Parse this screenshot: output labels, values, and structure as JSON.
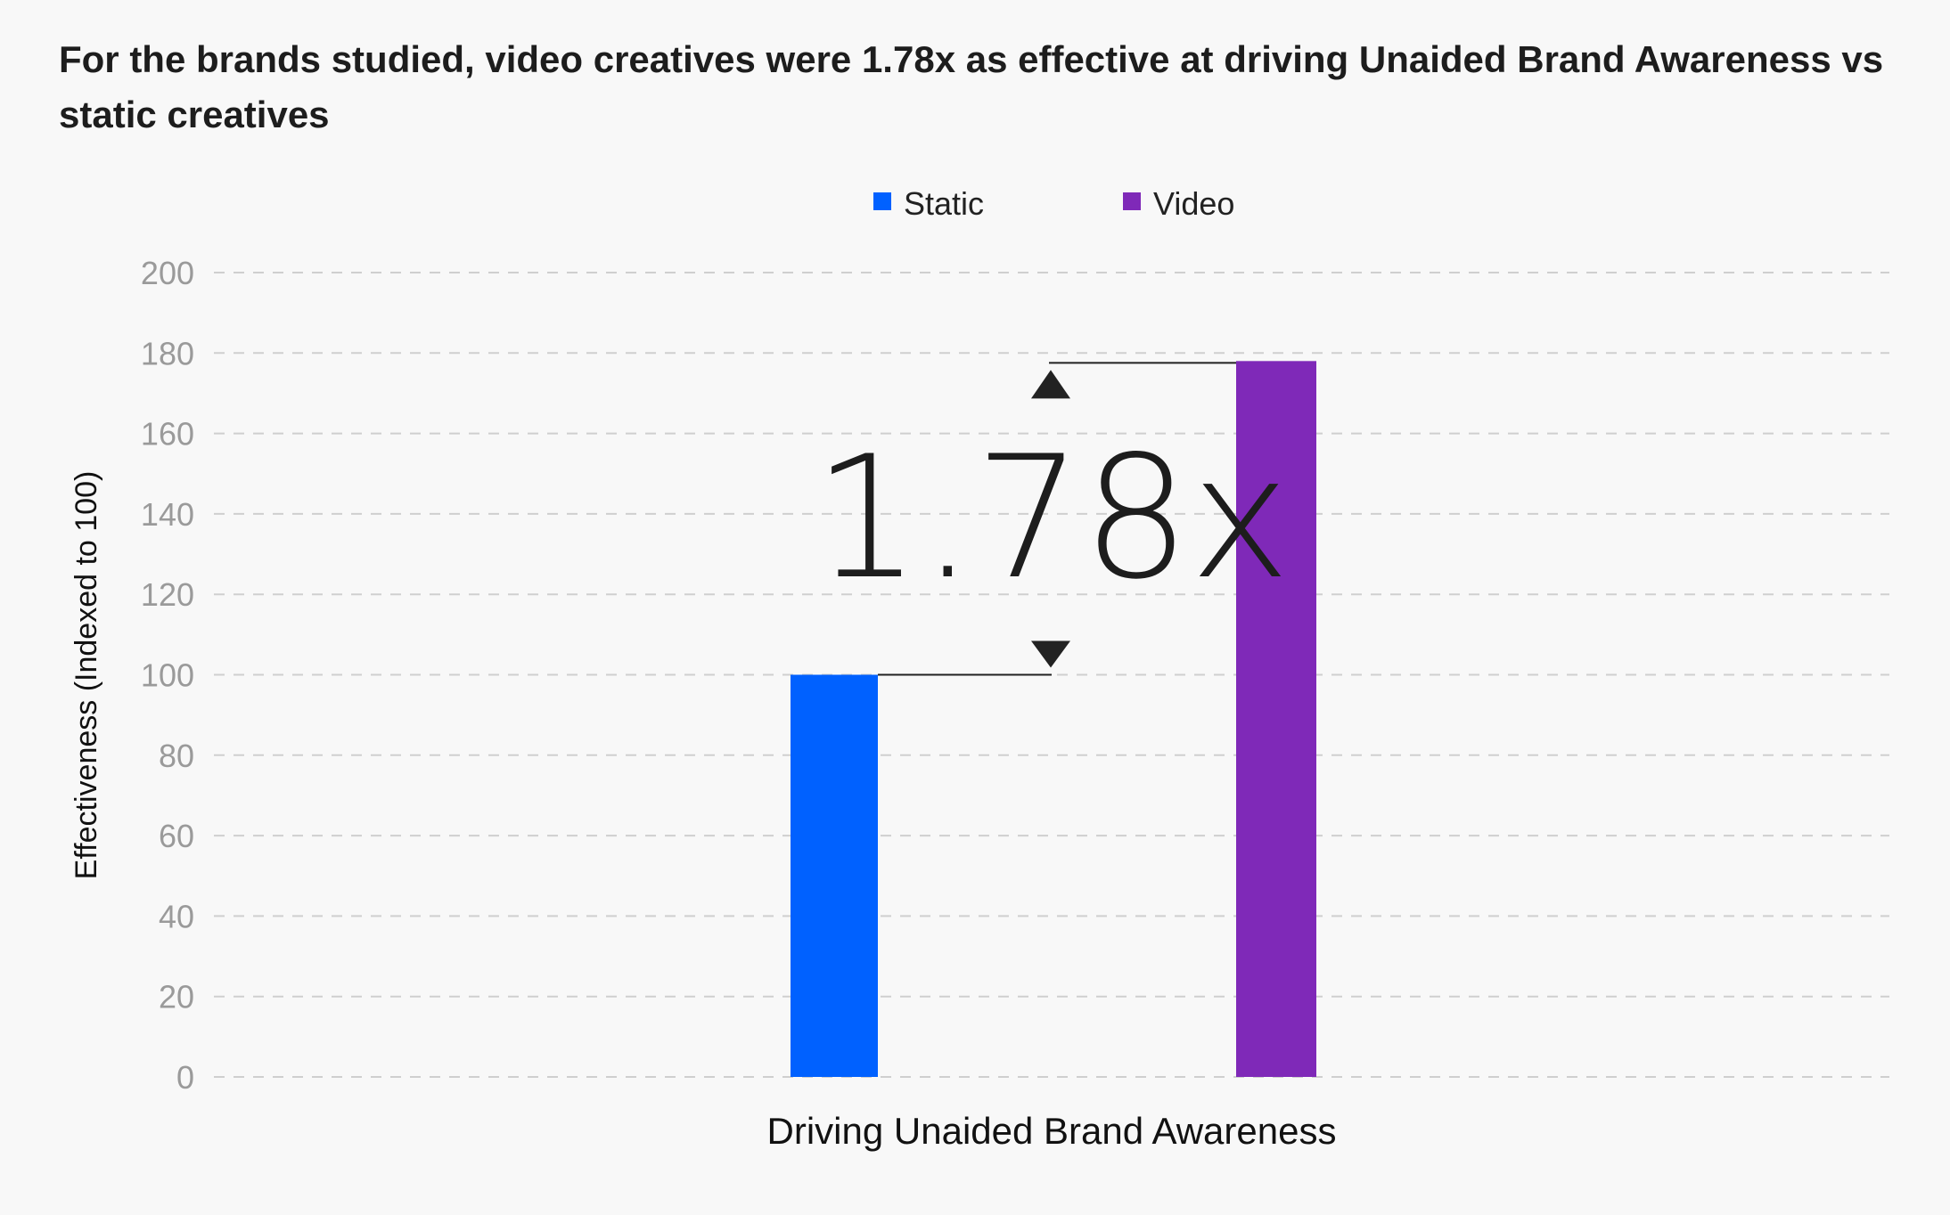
{
  "chart_data": {
    "type": "bar",
    "title": "For the brands studied, video creatives were 1.78x as effective at driving Unaided Brand Awareness vs static creatives",
    "categories": [
      "Driving Unaided Brand Awareness"
    ],
    "series": [
      {
        "name": "Static",
        "values": [
          100
        ],
        "color": "#0061ff"
      },
      {
        "name": "Video",
        "values": [
          178
        ],
        "color": "#7f29b8"
      }
    ],
    "xlabel": "Driving Unaided Brand Awareness",
    "ylabel": "Effectiveness (Indexed to 100)",
    "ylim": [
      0,
      200
    ],
    "yticks": [
      0,
      20,
      40,
      60,
      80,
      100,
      120,
      140,
      160,
      180,
      200
    ],
    "grid": true,
    "legend": "top-center",
    "annotation": {
      "text": "1.78x",
      "from": 100,
      "to": 178
    }
  }
}
